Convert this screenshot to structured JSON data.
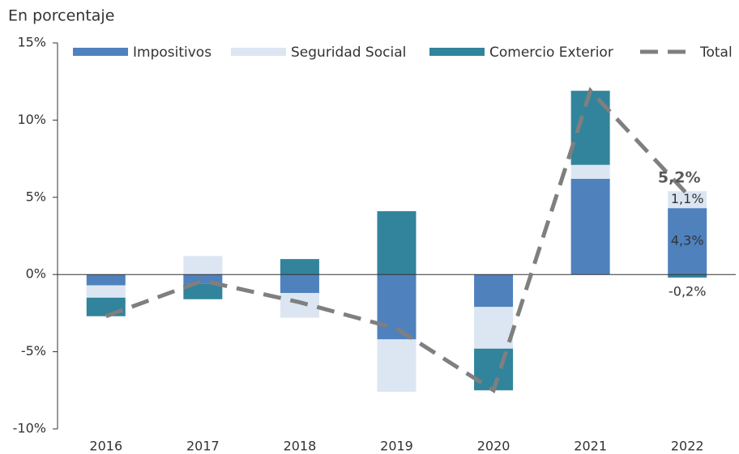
{
  "chart_data": {
    "type": "stacked_bar_line",
    "y_axis_label": "En porcentaje",
    "categories": [
      "2016",
      "2017",
      "2018",
      "2019",
      "2020",
      "2021",
      "2022"
    ],
    "series": [
      {
        "name": "Impositivos",
        "color": "#4f81bd",
        "values": [
          -0.7,
          -0.6,
          -1.2,
          -4.2,
          -2.1,
          6.2,
          4.3
        ],
        "value_labels": [
          null,
          null,
          null,
          null,
          null,
          null,
          "4,3%"
        ]
      },
      {
        "name": "Seguridad Social",
        "color": "#dce6f2",
        "values": [
          -0.8,
          1.2,
          -1.6,
          -3.4,
          -2.7,
          0.9,
          1.1
        ],
        "value_labels": [
          null,
          null,
          null,
          null,
          null,
          null,
          "1,1%"
        ]
      },
      {
        "name": "Comercio Exterior",
        "color": "#31849b",
        "values": [
          -1.2,
          -1.0,
          1.0,
          4.1,
          -2.7,
          4.8,
          -0.2
        ],
        "value_labels": [
          null,
          null,
          null,
          null,
          null,
          null,
          "-0,2%"
        ]
      },
      {
        "name": "Total",
        "type": "line",
        "color": "#7f7f7f",
        "dashed": true,
        "values": [
          -2.7,
          -0.4,
          -1.8,
          -3.5,
          -7.5,
          11.9,
          5.2
        ],
        "value_labels": [
          null,
          null,
          null,
          null,
          null,
          null,
          "5,2%"
        ]
      }
    ],
    "ylim": [
      -10,
      15
    ],
    "yticks": [
      {
        "value": -10,
        "label": "-10%"
      },
      {
        "value": -5,
        "label": "-5%"
      },
      {
        "value": 0,
        "label": "0%"
      },
      {
        "value": 5,
        "label": "5%"
      },
      {
        "value": 10,
        "label": "10%"
      },
      {
        "value": 15,
        "label": "15%"
      }
    ]
  }
}
